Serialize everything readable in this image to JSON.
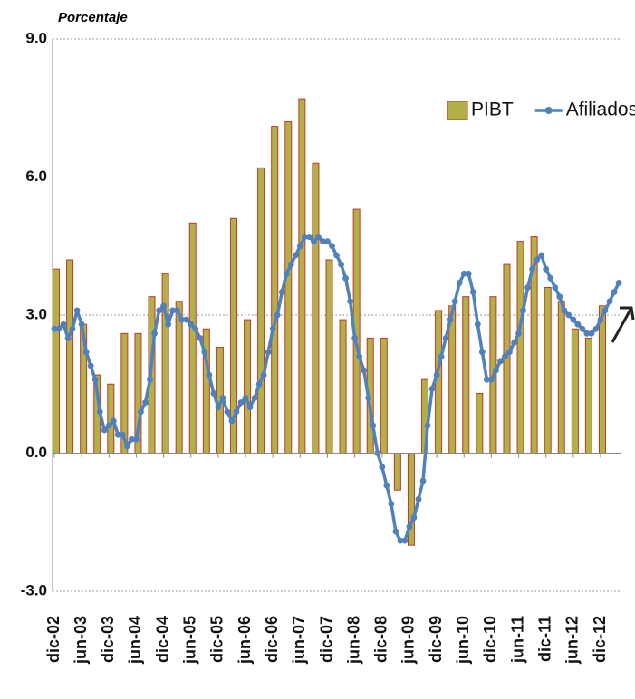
{
  "chart_data": {
    "type": "bar-line",
    "y_label": "Porcentaje",
    "legend": "upper right",
    "grid": true,
    "ylim": [
      -3,
      9
    ],
    "yticks": [
      {
        "value": -3,
        "label": "-3.0"
      },
      {
        "value": 0,
        "label": "0.0"
      },
      {
        "value": 3,
        "label": "3.0"
      },
      {
        "value": 6,
        "label": "6.0"
      },
      {
        "value": 9,
        "label": "9.0"
      }
    ],
    "categories": [
      "dic-02",
      null,
      null,
      null,
      null,
      null,
      "jun-03",
      null,
      null,
      null,
      null,
      null,
      "dic-03",
      null,
      null,
      null,
      null,
      null,
      "jun-04",
      null,
      null,
      null,
      null,
      null,
      "dic-04",
      null,
      null,
      null,
      null,
      null,
      "jun-05",
      null,
      null,
      null,
      null,
      null,
      "dic-05",
      null,
      null,
      null,
      null,
      null,
      "jun-06",
      null,
      null,
      null,
      null,
      null,
      "dic-06",
      null,
      null,
      null,
      null,
      null,
      "jun-07",
      null,
      null,
      null,
      null,
      null,
      "dic-07",
      null,
      null,
      null,
      null,
      null,
      "jun-08",
      null,
      null,
      null,
      null,
      null,
      "dic-08",
      null,
      null,
      null,
      null,
      null,
      "jun-09",
      null,
      null,
      null,
      null,
      null,
      "dic-09",
      null,
      null,
      null,
      null,
      null,
      "jun-10",
      null,
      null,
      null,
      null,
      null,
      "dic-10",
      null,
      null,
      null,
      null,
      null,
      "jun-11",
      null,
      null,
      null,
      null,
      null,
      "dic-11",
      null,
      null,
      null,
      null,
      null,
      "jun-12",
      null,
      null,
      null,
      null,
      null,
      "dic-12",
      null,
      null,
      null,
      null
    ],
    "series": [
      {
        "name": "PIBT",
        "type": "bar",
        "color": "#b3b04a",
        "edge_color": "#c0392b",
        "values": [
          4.0,
          null,
          null,
          4.2,
          null,
          null,
          2.8,
          null,
          null,
          1.7,
          null,
          null,
          1.5,
          null,
          null,
          2.6,
          null,
          null,
          2.6,
          null,
          null,
          3.4,
          null,
          null,
          3.9,
          null,
          null,
          3.3,
          null,
          null,
          5.0,
          null,
          null,
          2.7,
          null,
          null,
          2.3,
          null,
          null,
          5.1,
          null,
          null,
          2.9,
          null,
          null,
          6.2,
          null,
          null,
          7.1,
          null,
          null,
          7.2,
          null,
          null,
          7.7,
          null,
          null,
          6.3,
          null,
          null,
          4.2,
          null,
          null,
          2.9,
          null,
          null,
          5.3,
          null,
          null,
          2.5,
          null,
          null,
          2.5,
          null,
          null,
          -0.8,
          null,
          null,
          -2.0,
          null,
          null,
          1.6,
          null,
          null,
          3.1,
          null,
          null,
          3.2,
          null,
          null,
          3.4,
          null,
          null,
          1.3,
          null,
          null,
          3.4,
          null,
          null,
          4.1,
          null,
          null,
          4.6,
          null,
          null,
          4.7,
          null,
          null,
          3.6,
          null,
          null,
          3.3,
          null,
          null,
          2.7,
          null,
          null,
          2.5,
          null,
          null,
          3.2,
          null,
          null,
          null,
          null
        ]
      },
      {
        "name": "Afiliados",
        "type": "line",
        "color": "#4f81bd",
        "values": [
          2.7,
          2.7,
          2.8,
          2.5,
          2.7,
          3.1,
          2.8,
          2.2,
          1.9,
          1.6,
          0.9,
          0.5,
          0.6,
          0.7,
          0.4,
          0.4,
          0.15,
          0.3,
          0.3,
          0.9,
          1.1,
          1.6,
          2.6,
          3.1,
          3.2,
          2.8,
          3.1,
          3.1,
          2.9,
          2.9,
          2.8,
          2.7,
          2.5,
          2.2,
          1.7,
          1.3,
          1.0,
          1.2,
          0.9,
          0.7,
          0.9,
          1.1,
          1.2,
          1.0,
          1.2,
          1.5,
          1.7,
          2.2,
          2.7,
          3.0,
          3.5,
          3.9,
          4.1,
          4.3,
          4.5,
          4.7,
          4.7,
          4.6,
          4.7,
          4.6,
          4.6,
          4.5,
          4.3,
          4.1,
          3.8,
          3.3,
          2.5,
          2.1,
          1.8,
          1.2,
          0.6,
          0.0,
          -0.3,
          -0.7,
          -1.1,
          -1.7,
          -1.9,
          -1.9,
          -1.6,
          -1.4,
          -1.0,
          -0.6,
          0.6,
          1.4,
          1.7,
          2.1,
          2.5,
          2.9,
          3.3,
          3.7,
          3.9,
          3.9,
          3.5,
          2.8,
          2.2,
          1.6,
          1.6,
          1.8,
          2.0,
          2.1,
          2.2,
          2.4,
          2.6,
          3.1,
          3.6,
          4.0,
          4.2,
          4.3,
          4.0,
          3.8,
          3.6,
          3.4,
          3.1,
          3.0,
          2.9,
          2.8,
          2.7,
          2.6,
          2.6,
          2.7,
          2.9,
          3.1,
          3.3,
          3.5,
          3.7
        ]
      }
    ]
  }
}
